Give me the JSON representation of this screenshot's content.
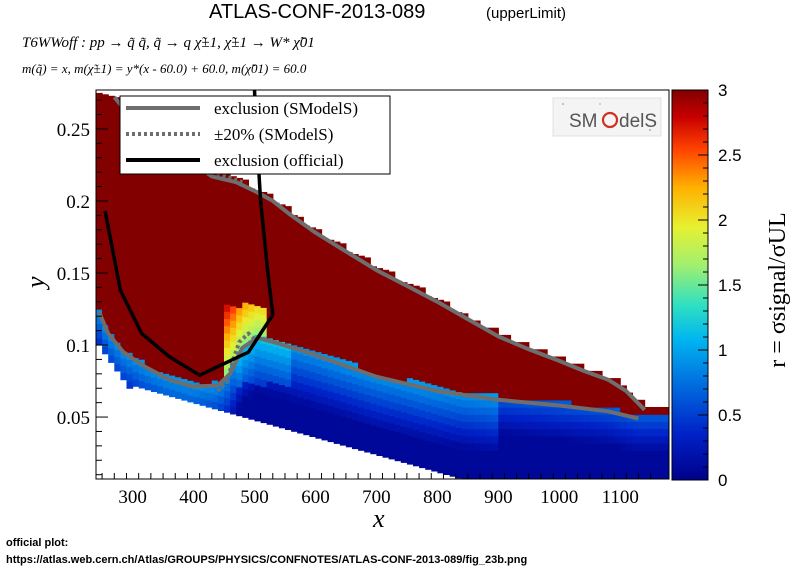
{
  "header": {
    "title": "ATLAS-CONF-2013-089",
    "title_suffix": "(upperLimit)",
    "process_line": "T6WWoff : pp → q̃ q̃, q̃ → q χ̃±1, χ̃±1 → W* χ̃01",
    "mass_line": "m(q̃) = x, m(χ̃±1) = y*(x - 60.0) + 60.0, m(χ̃01) = 60.0"
  },
  "logo": {
    "text": "SModelS"
  },
  "footer": {
    "line1": "official plot:",
    "line2": "https://atlas.web.cern.ch/Atlas/GROUPS/PHYSICS/CONFNOTES/ATLAS-CONF-2013-089/fig_23b.png"
  },
  "chart_data": {
    "type": "heatmap",
    "xlabel": "x",
    "ylabel": "y",
    "zlabel": "r = σsignal/σUL",
    "xlim": [
      240,
      1180
    ],
    "ylim": [
      0.007,
      0.277
    ],
    "zlim": [
      0,
      3
    ],
    "x_ticks": [
      "300",
      "400",
      "500",
      "600",
      "700",
      "800",
      "900",
      "1000",
      "1100"
    ],
    "y_ticks": [
      "0.05",
      "0.1",
      "0.15",
      "0.2",
      "0.25"
    ],
    "z_ticks": [
      "0",
      "0.5",
      "1",
      "1.5",
      "2",
      "2.5",
      "3"
    ],
    "legend": {
      "position": "top-left",
      "entries": [
        {
          "label": "exclusion (SModelS)",
          "style": "solid",
          "color": "#6e6e6e"
        },
        {
          "label": "±20% (SModelS)",
          "style": "dotted",
          "color": "#6e6e6e"
        },
        {
          "label": "exclusion (official)",
          "style": "solid",
          "color": "#000000"
        }
      ]
    },
    "series": [
      {
        "name": "exclusion (SModelS)",
        "upper": [
          [
            270,
            0.272
          ],
          [
            290,
            0.262
          ],
          [
            330,
            0.247
          ],
          [
            380,
            0.232
          ],
          [
            430,
            0.217
          ],
          [
            470,
            0.213
          ],
          [
            500,
            0.207
          ],
          [
            530,
            0.2
          ],
          [
            560,
            0.19
          ],
          [
            600,
            0.178
          ],
          [
            650,
            0.165
          ],
          [
            700,
            0.152
          ],
          [
            750,
            0.141
          ],
          [
            800,
            0.13
          ],
          [
            850,
            0.118
          ],
          [
            900,
            0.106
          ],
          [
            950,
            0.097
          ],
          [
            1000,
            0.089
          ],
          [
            1040,
            0.082
          ],
          [
            1080,
            0.076
          ],
          [
            1110,
            0.068
          ],
          [
            1140,
            0.055
          ]
        ],
        "lower": [
          [
            245,
            0.123
          ],
          [
            260,
            0.108
          ],
          [
            285,
            0.095
          ],
          [
            320,
            0.085
          ],
          [
            360,
            0.076
          ],
          [
            400,
            0.071
          ],
          [
            440,
            0.072
          ],
          [
            460,
            0.08
          ],
          [
            480,
            0.098
          ],
          [
            505,
            0.105
          ],
          [
            540,
            0.101
          ],
          [
            600,
            0.093
          ],
          [
            700,
            0.078
          ],
          [
            800,
            0.068
          ],
          [
            900,
            0.062
          ],
          [
            1000,
            0.058
          ],
          [
            1080,
            0.054
          ],
          [
            1130,
            0.049
          ]
        ]
      },
      {
        "name": "±20% (SModelS)",
        "upper": [
          [
            300,
            0.265
          ],
          [
            350,
            0.245
          ],
          [
            420,
            0.222
          ],
          [
            480,
            0.213
          ]
        ],
        "lower": [
          [
            440,
            0.068
          ],
          [
            455,
            0.075
          ],
          [
            465,
            0.09
          ],
          [
            475,
            0.102
          ],
          [
            490,
            0.108
          ],
          [
            500,
            0.104
          ]
        ]
      },
      {
        "name": "exclusion (official)",
        "points": [
          [
            255,
            0.193
          ],
          [
            280,
            0.138
          ],
          [
            315,
            0.108
          ],
          [
            360,
            0.092
          ],
          [
            410,
            0.079
          ],
          [
            440,
            0.085
          ],
          [
            490,
            0.095
          ],
          [
            530,
            0.121
          ],
          [
            522,
            0.15
          ],
          [
            510,
            0.2
          ],
          [
            503,
            0.25
          ],
          [
            500,
            0.277
          ]
        ]
      }
    ]
  }
}
